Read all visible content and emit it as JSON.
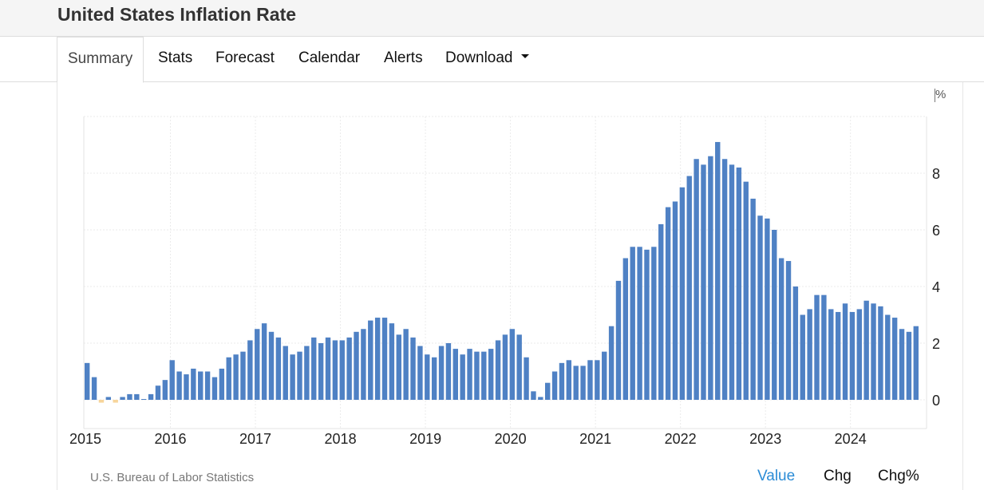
{
  "header": {
    "title": "United States Inflation Rate"
  },
  "tabs": [
    {
      "label": "Summary"
    },
    {
      "label": "Stats"
    },
    {
      "label": "Forecast"
    },
    {
      "label": "Calendar"
    },
    {
      "label": "Alerts"
    },
    {
      "label": "Download",
      "icon": "caret-down-icon"
    }
  ],
  "footer": {
    "source": "U.S. Bureau of Labor Statistics",
    "modes": [
      "Value",
      "Chg",
      "Chg%"
    ]
  },
  "colors": {
    "positive": "#4f81c4",
    "negative": "#f7d59b",
    "active_mode": "#2b8cd6"
  },
  "chart_data": {
    "type": "bar",
    "title": "",
    "unit": "%",
    "xlabel": "",
    "ylabel": "",
    "ylim": [
      -1,
      10
    ],
    "yticks": [
      0,
      2,
      4,
      6,
      8
    ],
    "x_ticks": [
      "2015",
      "2016",
      "2017",
      "2018",
      "2019",
      "2020",
      "2021",
      "2022",
      "2023",
      "2024"
    ],
    "start": "2015-01",
    "grid": true,
    "values": [
      1.3,
      0.8,
      -0.1,
      0.1,
      -0.1,
      0.1,
      0.2,
      0.2,
      0.0,
      0.2,
      0.5,
      0.7,
      1.4,
      1.0,
      0.9,
      1.1,
      1.0,
      1.0,
      0.8,
      1.1,
      1.5,
      1.6,
      1.7,
      2.1,
      2.5,
      2.7,
      2.4,
      2.2,
      1.9,
      1.6,
      1.7,
      1.9,
      2.2,
      2.0,
      2.2,
      2.1,
      2.1,
      2.2,
      2.4,
      2.5,
      2.8,
      2.9,
      2.9,
      2.7,
      2.3,
      2.5,
      2.2,
      1.9,
      1.6,
      1.5,
      1.9,
      2.0,
      1.8,
      1.6,
      1.8,
      1.7,
      1.7,
      1.8,
      2.1,
      2.3,
      2.5,
      2.3,
      1.5,
      0.3,
      0.1,
      0.6,
      1.0,
      1.3,
      1.4,
      1.2,
      1.2,
      1.4,
      1.4,
      1.7,
      2.6,
      4.2,
      5.0,
      5.4,
      5.4,
      5.3,
      5.4,
      6.2,
      6.8,
      7.0,
      7.5,
      7.9,
      8.5,
      8.3,
      8.6,
      9.1,
      8.5,
      8.3,
      8.2,
      7.7,
      7.1,
      6.5,
      6.4,
      6.0,
      5.0,
      4.9,
      4.0,
      3.0,
      3.2,
      3.7,
      3.7,
      3.2,
      3.1,
      3.4,
      3.1,
      3.2,
      3.5,
      3.4,
      3.3,
      3.0,
      2.9,
      2.5,
      2.4,
      2.6
    ]
  }
}
